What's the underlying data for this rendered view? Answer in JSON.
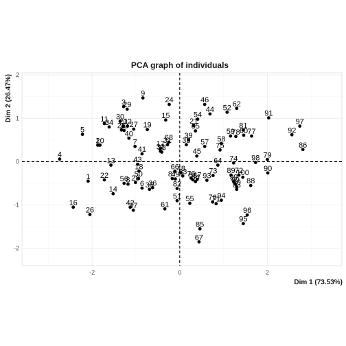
{
  "chart_data": {
    "type": "scatter",
    "title": "PCA graph of individuals",
    "xlabel": "Dim 1 (73.53%)",
    "ylabel": "Dim 2 (26.47%)",
    "xlim": [
      -3.6,
      3.7
    ],
    "ylim": [
      -2.4,
      2.05
    ],
    "xticks": [
      -2,
      0,
      2
    ],
    "xtick_labels": [
      "-2",
      "0",
      "2"
    ],
    "yticks": [
      -2,
      -1,
      0,
      1,
      2
    ],
    "ytick_labels": [
      "-2",
      "-1",
      "0",
      "1",
      "2"
    ],
    "grid": true,
    "reference_lines": {
      "x": 0,
      "y": 0,
      "style": "dashed"
    },
    "colors": {
      "points": "#000000",
      "grid_major": "#ebebeb",
      "grid_minor": "#f5f5f5",
      "panel_border": "#d9d9d9",
      "background": "#ffffff"
    },
    "points": [
      {
        "label": "1",
        "x": -2.09,
        "y": -0.45
      },
      {
        "label": "2",
        "x": -1.87,
        "y": 0.38
      },
      {
        "label": "3",
        "x": -1.28,
        "y": 1.27
      },
      {
        "label": "4",
        "x": -2.74,
        "y": 0.06
      },
      {
        "label": "5",
        "x": -2.22,
        "y": 0.63
      },
      {
        "label": "6",
        "x": -0.86,
        "y": -0.61
      },
      {
        "label": "7",
        "x": -1.02,
        "y": 0.35
      },
      {
        "label": "8",
        "x": -1.18,
        "y": -0.52
      },
      {
        "label": "9",
        "x": -0.84,
        "y": 1.47
      },
      {
        "label": "10",
        "x": -1.82,
        "y": 0.38
      },
      {
        "label": "11",
        "x": -1.72,
        "y": 0.88
      },
      {
        "label": "12",
        "x": -1.19,
        "y": 0.82
      },
      {
        "label": "13",
        "x": -1.57,
        "y": -0.08
      },
      {
        "label": "14",
        "x": -1.52,
        "y": -0.74
      },
      {
        "label": "15",
        "x": -0.32,
        "y": 0.96
      },
      {
        "label": "16",
        "x": -2.43,
        "y": -1.05
      },
      {
        "label": "17",
        "x": -0.44,
        "y": 0.31
      },
      {
        "label": "18",
        "x": -0.93,
        "y": -0.22
      },
      {
        "label": "19",
        "x": -0.74,
        "y": 0.74
      },
      {
        "label": "20",
        "x": -1.29,
        "y": 0.82
      },
      {
        "label": "21",
        "x": 0.32,
        "y": 0.83
      },
      {
        "label": "22",
        "x": -1.72,
        "y": -0.42
      },
      {
        "label": "23",
        "x": -1.27,
        "y": 0.72
      },
      {
        "label": "24",
        "x": -0.24,
        "y": 1.32
      },
      {
        "label": "25",
        "x": -1.33,
        "y": 0.73
      },
      {
        "label": "26",
        "x": -2.05,
        "y": -1.22
      },
      {
        "label": "27",
        "x": -1.05,
        "y": 0.75
      },
      {
        "label": "28",
        "x": -1.01,
        "y": -0.48
      },
      {
        "label": "29",
        "x": -1.2,
        "y": 1.21
      },
      {
        "label": "30",
        "x": -1.36,
        "y": 0.93
      },
      {
        "label": "31",
        "x": -0.28,
        "y": 0.39
      },
      {
        "label": "32",
        "x": -0.44,
        "y": 0.24
      },
      {
        "label": "33",
        "x": 0.15,
        "y": 0.39
      },
      {
        "label": "34",
        "x": -1.61,
        "y": 0.8
      },
      {
        "label": "35",
        "x": -0.69,
        "y": -0.64
      },
      {
        "label": "36",
        "x": -0.62,
        "y": -0.6
      },
      {
        "label": "37",
        "x": -1.06,
        "y": -1.12
      },
      {
        "label": "38",
        "x": -0.41,
        "y": 0.22
      },
      {
        "label": "39",
        "x": 0.2,
        "y": 0.5
      },
      {
        "label": "40",
        "x": -1.16,
        "y": 0.54
      },
      {
        "label": "41",
        "x": -0.86,
        "y": 0.18
      },
      {
        "label": "42",
        "x": -1.13,
        "y": -1.05
      },
      {
        "label": "43",
        "x": -0.96,
        "y": -0.06
      },
      {
        "label": "44",
        "x": 0.69,
        "y": 1.1
      },
      {
        "label": "45",
        "x": 0.39,
        "y": 0.13
      },
      {
        "label": "46",
        "x": 0.57,
        "y": 1.32
      },
      {
        "label": "47",
        "x": 0.4,
        "y": -0.41
      },
      {
        "label": "48",
        "x": 0.03,
        "y": -0.26
      },
      {
        "label": "49",
        "x": -0.1,
        "y": -0.4
      },
      {
        "label": "50",
        "x": -0.94,
        "y": -0.39
      },
      {
        "label": "51",
        "x": -0.06,
        "y": -0.9
      },
      {
        "label": "52",
        "x": 1.08,
        "y": 1.14
      },
      {
        "label": "53",
        "x": 0.3,
        "y": -0.42
      },
      {
        "label": "54",
        "x": 0.41,
        "y": 0.98
      },
      {
        "label": "55",
        "x": 0.23,
        "y": -0.96
      },
      {
        "label": "56",
        "x": -1.27,
        "y": -0.5
      },
      {
        "label": "57",
        "x": 0.57,
        "y": 0.35
      },
      {
        "label": "58",
        "x": 0.95,
        "y": 0.42
      },
      {
        "label": "59",
        "x": 1.16,
        "y": 0.59
      },
      {
        "label": "60",
        "x": 1.46,
        "y": 0.61
      },
      {
        "label": "61",
        "x": -0.34,
        "y": -1.09
      },
      {
        "label": "62",
        "x": 1.3,
        "y": 1.23
      },
      {
        "label": "63",
        "x": 0.07,
        "y": -0.33
      },
      {
        "label": "64",
        "x": 0.87,
        "y": -0.08
      },
      {
        "label": "65",
        "x": 0.36,
        "y": 0.71
      },
      {
        "label": "66",
        "x": -0.11,
        "y": -0.22
      },
      {
        "label": "67",
        "x": 0.44,
        "y": -1.85
      },
      {
        "label": "68",
        "x": -0.25,
        "y": 0.45
      },
      {
        "label": "69",
        "x": 1.27,
        "y": -0.52
      },
      {
        "label": "70",
        "x": 0.75,
        "y": -0.93
      },
      {
        "label": "71",
        "x": 0.83,
        "y": -0.97
      },
      {
        "label": "72",
        "x": 1.35,
        "y": -0.31
      },
      {
        "label": "73",
        "x": 0.76,
        "y": -0.32
      },
      {
        "label": "74",
        "x": 1.23,
        "y": -0.03
      },
      {
        "label": "75",
        "x": 0.92,
        "y": 0.27
      },
      {
        "label": "76",
        "x": 0.26,
        "y": -0.38
      },
      {
        "label": "77",
        "x": 1.64,
        "y": 0.59
      },
      {
        "label": "78",
        "x": 1.28,
        "y": 0.58
      },
      {
        "label": "79",
        "x": 2.0,
        "y": 0.05
      },
      {
        "label": "80",
        "x": 1.3,
        "y": -0.58
      },
      {
        "label": "81",
        "x": 1.45,
        "y": 0.73
      },
      {
        "label": "82",
        "x": -0.06,
        "y": -0.62
      },
      {
        "label": "83",
        "x": 1.3,
        "y": -0.64
      },
      {
        "label": "84",
        "x": 0.36,
        "y": -0.46
      },
      {
        "label": "85",
        "x": 0.46,
        "y": -1.55
      },
      {
        "label": "86",
        "x": 2.81,
        "y": 0.28
      },
      {
        "label": "87",
        "x": -0.17,
        "y": -0.39
      },
      {
        "label": "88",
        "x": 1.62,
        "y": -0.55
      },
      {
        "label": "89",
        "x": 1.17,
        "y": -0.31
      },
      {
        "label": "90",
        "x": 2.01,
        "y": -0.26
      },
      {
        "label": "91",
        "x": 2.03,
        "y": 1.01
      },
      {
        "label": "92",
        "x": 2.56,
        "y": 0.62
      },
      {
        "label": "93",
        "x": 0.62,
        "y": -0.43
      },
      {
        "label": "94",
        "x": 0.95,
        "y": -0.89
      },
      {
        "label": "95",
        "x": 1.45,
        "y": -1.43
      },
      {
        "label": "96",
        "x": 1.54,
        "y": -1.23
      },
      {
        "label": "97",
        "x": 2.74,
        "y": 0.82
      },
      {
        "label": "98",
        "x": 1.73,
        "y": -0.02
      },
      {
        "label": "99",
        "x": 1.23,
        "y": -0.46
      },
      {
        "label": "100",
        "x": 1.44,
        "y": -0.36
      }
    ]
  }
}
